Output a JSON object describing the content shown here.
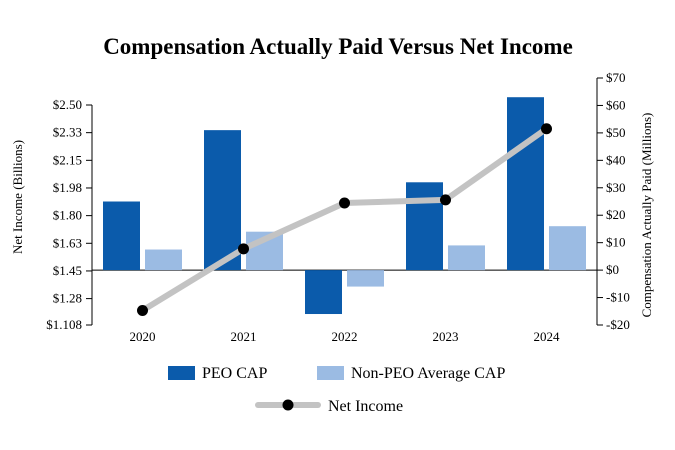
{
  "chart_data": {
    "type": "bar",
    "title": "Compensation Actually Paid Versus Net Income",
    "categories": [
      "2020",
      "2021",
      "2022",
      "2023",
      "2024"
    ],
    "y_left": {
      "label": "Net Income (Billions)",
      "ticks": [
        "$2.50",
        "$2.33",
        "$2.15",
        "$1.98",
        "$1.80",
        "$1.63",
        "$1.45",
        "$1.28",
        "$1.108"
      ],
      "tick_values": [
        2.5,
        2.325,
        2.15,
        1.975,
        1.8,
        1.625,
        1.45,
        1.275,
        1.108
      ],
      "ylim": [
        1.108,
        2.5
      ]
    },
    "y_right": {
      "label": "Compensation Actually Paid (Millions)",
      "ticks": [
        "$70",
        "$60",
        "$50",
        "$40",
        "$30",
        "$20",
        "$10",
        "$0",
        "-$10",
        "-$20"
      ],
      "tick_values": [
        70,
        60,
        50,
        40,
        30,
        20,
        10,
        0,
        -10,
        -20
      ],
      "ylim": [
        -20,
        70
      ]
    },
    "series": [
      {
        "name": "PEO CAP",
        "axis": "right",
        "kind": "bar",
        "color": "#0b5bab",
        "values": [
          25,
          51,
          -16,
          32,
          63
        ]
      },
      {
        "name": "Non-PEO Average CAP",
        "axis": "right",
        "kind": "bar",
        "color": "#9bbbe3",
        "values": [
          7.5,
          14,
          -6,
          9,
          16
        ]
      },
      {
        "name": "Net Income",
        "axis": "left",
        "kind": "line",
        "color": "#c3c3c3",
        "marker_color": "#000000",
        "values": [
          1.2,
          1.59,
          1.88,
          1.9,
          2.35
        ]
      }
    ],
    "legend": [
      {
        "label": "PEO CAP",
        "kind": "bar",
        "color": "#0b5bab"
      },
      {
        "label": "Non-PEO Average CAP",
        "kind": "bar",
        "color": "#9bbbe3"
      },
      {
        "label": "Net Income",
        "kind": "line",
        "color": "#c3c3c3"
      }
    ],
    "legend_position": "bottom"
  }
}
